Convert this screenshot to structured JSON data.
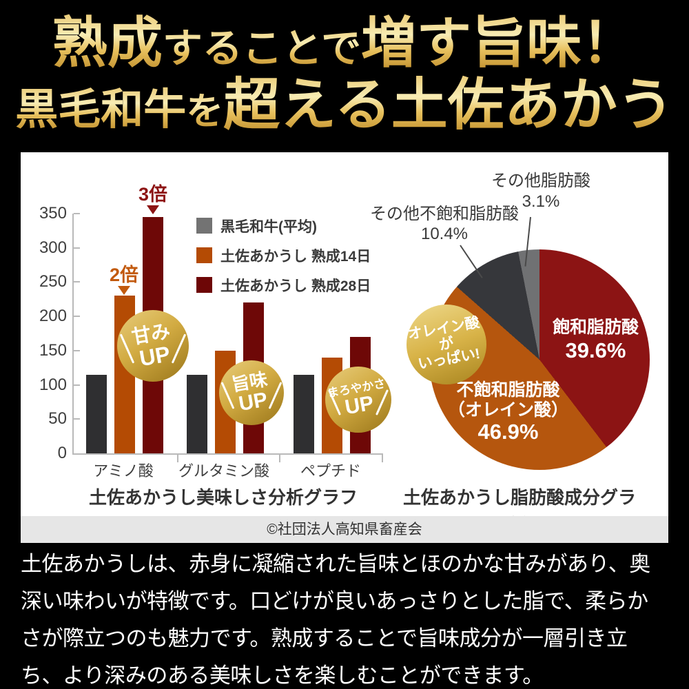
{
  "header": {
    "l1a": "熟成",
    "l1b": "することで",
    "l1c": "増す旨味！",
    "l2a": "黒毛和牛",
    "l2b": "を",
    "l2c": "超える土佐あかうし"
  },
  "chart_data": [
    {
      "type": "bar",
      "title": "土佐あかうし美味しさ分析グラフ",
      "categories": [
        "アミノ酸",
        "グルタミン酸",
        "ペプチド"
      ],
      "series": [
        {
          "name": "黒毛和牛(平均)",
          "color": "#2f2f31",
          "legend_color": "#737373",
          "values": [
            115,
            115,
            115
          ]
        },
        {
          "name": "土佐あかうし 熟成14日",
          "color": "#b44b04",
          "legend_color": "#b44b04",
          "values": [
            230,
            150,
            140
          ]
        },
        {
          "name": "土佐あかうし 熟成28日",
          "color": "#6e0807",
          "legend_color": "#6d0606",
          "values": [
            345,
            220,
            170
          ]
        }
      ],
      "ylim": [
        0,
        350
      ],
      "ytick_step": 50,
      "grid": false,
      "legend_position": "upper-right",
      "annotations": [
        {
          "text": "2倍",
          "target": "土佐あかうし 熟成14日 アミノ酸",
          "color": "#c25a0e"
        },
        {
          "text": "3倍",
          "target": "土佐あかうし 熟成28日 アミノ酸",
          "color": "#8d1414"
        }
      ]
    },
    {
      "type": "pie",
      "title": "土佐あかうし脂肪酸成分グラフ",
      "start": "top-clockwise",
      "slices": [
        {
          "label": "飽和脂肪酸",
          "pct": 39.6,
          "pct_label": "39.6%",
          "color": "#8c1414",
          "label_l1": "飽和脂肪酸"
        },
        {
          "label": "不飽和脂肪酸（オレイン酸）",
          "pct": 46.9,
          "pct_label": "46.9%",
          "color": "#b5560e",
          "label_l1": "不飽和脂肪酸",
          "label_l2": "（オレイン酸）"
        },
        {
          "label": "その他不飽和脂肪酸",
          "pct": 10.4,
          "pct_label": "10.4%",
          "color": "#36373b",
          "label_l1": "その他不飽和脂肪酸"
        },
        {
          "label": "その他脂肪酸",
          "pct": 3.1,
          "pct_label": "3.1%",
          "color": "#707173",
          "label_l1": "その他脂肪酸"
        }
      ]
    }
  ],
  "badges": {
    "amami": {
      "l1": "甘み",
      "l2": "UP"
    },
    "umami": {
      "l1": "旨味",
      "l2": "UP"
    },
    "maroyaka": {
      "l1": "まろやかさ",
      "l2": "UP"
    },
    "olein": {
      "l1": "オレイン酸が",
      "l2": "いっぱい!"
    }
  },
  "credit": "©社団法人高知県畜産会",
  "paragraph": "土佐あかうしは、赤身に凝縮された旨味とほのかな甘みがあり、奥深い味わいが特徴です。口どけが良いあっさりとした脂で、柔らかさが際立つのも魅力です。熟成することで旨味成分が一層引き立ち、より深みのある美味しさを楽しむことができます。",
  "colors": {
    "background": "#000000",
    "panel": "#ffffff",
    "credit_strip": "#e6e6e6",
    "axis": "#b9b9b9",
    "gold_text_light": "#f8ecb4",
    "gold_text_dark": "#b98624",
    "badge_gold_light": "#e8cd7d",
    "badge_gold_dark": "#9a761a"
  }
}
